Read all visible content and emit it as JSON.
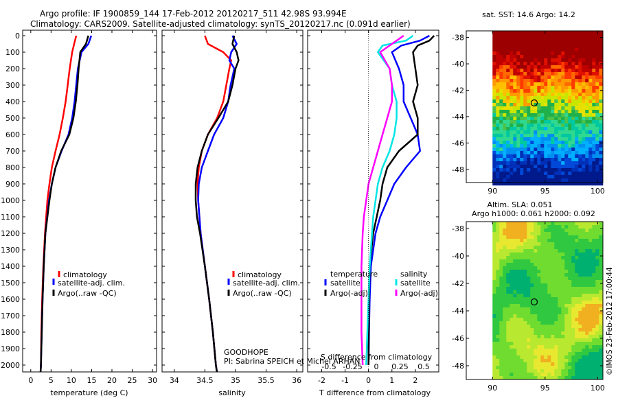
{
  "header": {
    "line1": "Argo profile: IF 1900859_144 17-Feb-2012 20120217_511 42.98S 93.994E",
    "line2": "Climatology: CARS2009. Satellite-adjusted climatology: synTS_20120217.nc (0.091d earlier)"
  },
  "side_stamp": "©IMOS 23-Feb-2012 17:00:44",
  "colors": {
    "climatology": "#ff0000",
    "satellite": "#0000ff",
    "argo": "#000000",
    "satellite_s": "#00e5e5",
    "argo_s": "#ff00ff"
  },
  "depth_ticks": [
    "0",
    "100",
    "200",
    "300",
    "400",
    "500",
    "600",
    "700",
    "800",
    "900",
    "1000",
    "1100",
    "1200",
    "1300",
    "1400",
    "1500",
    "1600",
    "1700",
    "1800",
    "1900",
    "2000"
  ],
  "chart_data": [
    {
      "type": "line",
      "id": "temperature",
      "xlabel": "temperature (deg C)",
      "xlim": [
        -2,
        31
      ],
      "ylim": [
        2070,
        0
      ],
      "xticks": [
        0,
        5,
        10,
        15,
        20,
        25,
        30
      ],
      "xtick_labels": [
        "0",
        "5",
        "10",
        "15",
        "20",
        "25",
        "30"
      ],
      "legend": [
        "climatology",
        "satellite-adj. clim.",
        "Argo(..raw -QC)"
      ],
      "series": [
        {
          "name": "climatology",
          "color": "#ff0000",
          "depth": [
            0,
            50,
            100,
            200,
            300,
            400,
            500,
            600,
            700,
            800,
            900,
            1000,
            1200,
            1400,
            1600,
            1800,
            2000,
            2050
          ],
          "values": [
            11.2,
            10.7,
            10.2,
            9.6,
            9.1,
            8.6,
            7.9,
            7.1,
            6.1,
            5.2,
            4.6,
            4.1,
            3.5,
            3.1,
            2.8,
            2.6,
            2.5,
            2.4
          ]
        },
        {
          "name": "satellite-adj. clim.",
          "color": "#0000ff",
          "depth": [
            0,
            50,
            100,
            200,
            300,
            400,
            500,
            600,
            700,
            800,
            900,
            1000,
            1200,
            1400,
            1600,
            1800,
            2000,
            2050
          ],
          "values": [
            14.9,
            14.2,
            12.5,
            11.6,
            11.2,
            10.8,
            10.2,
            9.3,
            7.6,
            6.1,
            5.2,
            4.5,
            3.6,
            3.2,
            2.9,
            2.7,
            2.5,
            2.4
          ]
        },
        {
          "name": "Argo(..raw -QC)",
          "color": "#000000",
          "depth": [
            0,
            50,
            100,
            200,
            300,
            400,
            500,
            600,
            700,
            800,
            900,
            1000,
            1200,
            1400,
            1600,
            1800,
            2000,
            2050
          ],
          "values": [
            14.2,
            13.6,
            12.2,
            11.8,
            11.5,
            11.1,
            10.5,
            9.5,
            7.5,
            6.1,
            5.2,
            4.6,
            3.6,
            3.2,
            2.9,
            2.7,
            2.5,
            2.4
          ]
        }
      ]
    },
    {
      "type": "line",
      "id": "salinity",
      "xlabel": "salinity",
      "xlim": [
        33.8,
        36.1
      ],
      "ylim": [
        2070,
        0
      ],
      "xticks": [
        34,
        34.5,
        35,
        35.5,
        36
      ],
      "xtick_labels": [
        "34",
        "34.5",
        "35",
        "35.5",
        "36"
      ],
      "legend": [
        "climatology",
        "satellite-adj. clim.",
        "Argo(..raw -QC)"
      ],
      "annotation": [
        "GOODHOPE",
        "PI: Sabrina SPEICH et Michel ARHAN"
      ],
      "series": [
        {
          "name": "climatology",
          "color": "#ff0000",
          "depth": [
            0,
            50,
            100,
            150,
            200,
            300,
            400,
            500,
            600,
            700,
            800,
            900,
            1000,
            1100,
            1200,
            1400,
            1600,
            1800,
            2000,
            2050
          ],
          "values": [
            34.5,
            34.55,
            34.8,
            34.93,
            34.9,
            34.85,
            34.8,
            34.7,
            34.55,
            34.45,
            34.4,
            34.38,
            34.39,
            34.41,
            34.43,
            34.5,
            34.57,
            34.63,
            34.68,
            34.7
          ]
        },
        {
          "name": "satellite-adj. clim.",
          "color": "#0000ff",
          "depth": [
            0,
            50,
            100,
            150,
            200,
            300,
            400,
            500,
            600,
            700,
            800,
            900,
            1000,
            1100,
            1200,
            1400,
            1600,
            1800,
            2000,
            2050
          ],
          "values": [
            34.95,
            35.02,
            34.93,
            34.9,
            34.98,
            34.92,
            34.88,
            34.8,
            34.65,
            34.55,
            34.45,
            34.4,
            34.39,
            34.41,
            34.43,
            34.5,
            34.57,
            34.63,
            34.68,
            34.7
          ]
        },
        {
          "name": "Argo(..raw -QC)",
          "color": "#000000",
          "depth": [
            0,
            50,
            100,
            150,
            200,
            300,
            400,
            500,
            600,
            700,
            800,
            900,
            1000,
            1100,
            1200,
            1400,
            1600,
            1800,
            2000,
            2050
          ],
          "values": [
            34.98,
            34.95,
            35.02,
            35.05,
            35.0,
            34.95,
            34.88,
            34.72,
            34.55,
            34.45,
            34.38,
            34.35,
            34.35,
            34.37,
            34.42,
            34.5,
            34.57,
            34.63,
            34.68,
            34.7
          ]
        }
      ]
    },
    {
      "type": "line",
      "id": "differences",
      "xlabel": "T difference from climatology",
      "xlabel_top": "S difference from climatology",
      "xlim": [
        -2.6,
        3.0
      ],
      "ylim": [
        2070,
        0
      ],
      "xticks": [
        -2,
        -1,
        0,
        1,
        2
      ],
      "xtick_labels": [
        "-2",
        "-1",
        "0",
        "1",
        "2"
      ],
      "s_ticks": [
        -0.5,
        -0.25,
        0,
        0.25,
        0.5
      ],
      "s_tick_labels": [
        "-0.5",
        "-0.25",
        "0",
        "0.25",
        "0.5"
      ],
      "legend_title_t": "temperature",
      "legend_title_s": "salinity",
      "legend_t": [
        "satellite",
        "Argo(-adj)"
      ],
      "legend_s": [
        "satellite",
        "Argo(-adj)"
      ],
      "series": [
        {
          "name": "T satellite",
          "color": "#0000ff",
          "depth": [
            0,
            30,
            60,
            100,
            200,
            300,
            400,
            500,
            600,
            700,
            800,
            900,
            1000,
            1100,
            1200,
            1400,
            1600,
            1800,
            2000
          ],
          "values": [
            2.6,
            2.2,
            1.4,
            1.0,
            1.3,
            1.5,
            1.5,
            1.8,
            2.1,
            2.2,
            1.6,
            1.1,
            0.8,
            0.5,
            0.3,
            0.1,
            0.05,
            0.02,
            0.0
          ]
        },
        {
          "name": "T Argo(-adj)",
          "color": "#000000",
          "depth": [
            0,
            30,
            60,
            100,
            200,
            300,
            400,
            500,
            600,
            700,
            800,
            900,
            1000,
            1100,
            1200,
            1400,
            1600,
            1800,
            2000
          ],
          "values": [
            2.8,
            2.6,
            2.1,
            1.9,
            2.0,
            2.1,
            1.9,
            2.1,
            2.1,
            1.3,
            0.8,
            0.6,
            0.5,
            0.35,
            0.2,
            0.05,
            0.02,
            0.01,
            0.0
          ]
        },
        {
          "name": "S satellite",
          "color": "#00e5e5",
          "depth": [
            0,
            30,
            60,
            100,
            200,
            300,
            400,
            500,
            600,
            700,
            800,
            900,
            1000,
            1100,
            1200,
            1400,
            1600,
            1800,
            2000
          ],
          "values": [
            1.9,
            1.6,
            0.6,
            0.4,
            0.9,
            1.0,
            1.2,
            1.2,
            1.1,
            0.9,
            0.6,
            0.4,
            0.3,
            0.2,
            0.15,
            0.05,
            0.0,
            -0.05,
            -0.1
          ]
        },
        {
          "name": "S Argo(-adj)",
          "color": "#ff00ff",
          "depth": [
            0,
            30,
            60,
            100,
            200,
            300,
            400,
            500,
            600,
            700,
            800,
            900,
            1000,
            1100,
            1200,
            1400,
            1600,
            1800,
            2000
          ],
          "values": [
            1.5,
            1.2,
            0.9,
            0.5,
            0.9,
            1.0,
            1.0,
            0.8,
            0.6,
            0.4,
            0.2,
            0.0,
            -0.1,
            -0.2,
            -0.25,
            -0.3,
            -0.3,
            -0.3,
            -0.25
          ]
        }
      ]
    },
    {
      "type": "heatmap",
      "id": "sst_map",
      "title": "sat. SST: 14.6  Argo: 14.2",
      "xticks": [
        90,
        95,
        100
      ],
      "xtick_labels": [
        "90",
        "95",
        "100"
      ],
      "yticks": [
        -38,
        -40,
        -42,
        -44,
        -46,
        -48
      ],
      "ytick_labels": [
        "-38",
        "-40",
        "-42",
        "-44",
        "-46",
        "-48"
      ],
      "xlim": [
        87.5,
        100.5
      ],
      "ylim": [
        -49,
        -37.5
      ],
      "data_xlim": [
        90,
        100.5
      ],
      "argo_position": [
        93.994,
        -42.98
      ]
    },
    {
      "type": "heatmap",
      "id": "sla_map",
      "title": "Altim. SLA: 0.051",
      "subtitle": "Argo h1000: 0.061  h2000: 0.092",
      "xticks": [
        90,
        95,
        100
      ],
      "xtick_labels": [
        "90",
        "95",
        "100"
      ],
      "yticks": [
        -38,
        -40,
        -42,
        -44,
        -46,
        -48
      ],
      "ytick_labels": [
        "-38",
        "-40",
        "-42",
        "-44",
        "-46",
        "-48"
      ],
      "xlim": [
        87.5,
        100.5
      ],
      "ylim": [
        -49,
        -37.5
      ],
      "data_xlim": [
        90,
        100.5
      ],
      "argo_position": [
        93.994,
        -42.98
      ]
    }
  ]
}
